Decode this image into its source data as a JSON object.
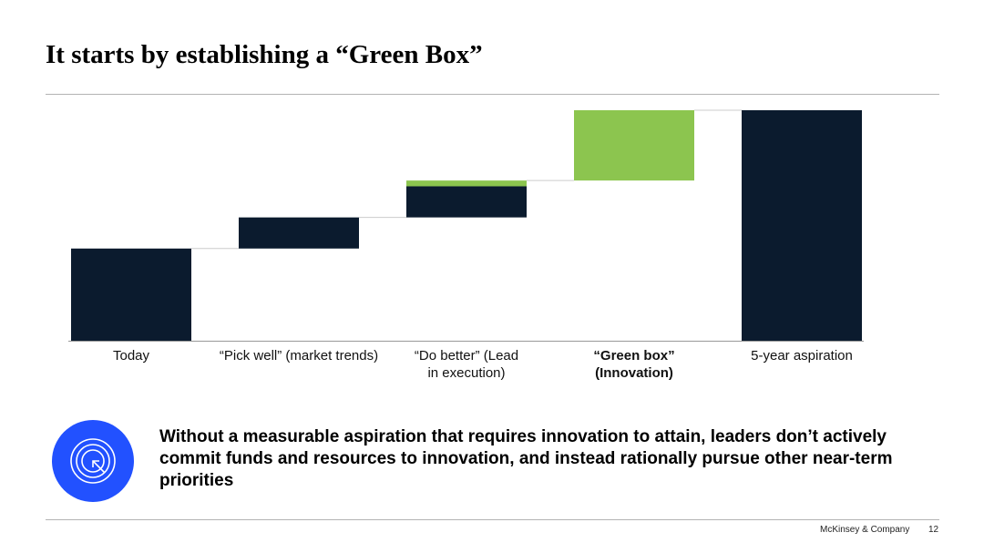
{
  "slide": {
    "title": "It starts by establishing a “Green Box”",
    "callout": "Without a measurable aspiration that requires innovation to attain, leaders don’t actively commit funds and resources to innovation, and instead rationally pursue other near-term priorities",
    "icon": "target-icon",
    "footer": {
      "brand": "McKinsey & Company",
      "page": "12"
    }
  },
  "colors": {
    "navy": "#0b1b2e",
    "green": "#8cc54f",
    "icon_bg": "#2251ff",
    "connector": "#cccccc",
    "rule": "#b3b3b3"
  },
  "chart_data": {
    "type": "bar",
    "subtype": "waterfall",
    "title": "",
    "xlabel": "",
    "ylabel": "",
    "ylim": [
      0,
      100
    ],
    "grid": false,
    "legend": "none",
    "categories": [
      {
        "label": "Today",
        "bold": false
      },
      {
        "label": "“Pick well” (market trends)",
        "bold": false
      },
      {
        "label": "“Do better” (Lead\nin execution)",
        "bold": false
      },
      {
        "label": "“Green box”\n(Innovation)",
        "bold": true
      },
      {
        "label": "5-year aspiration",
        "bold": false
      }
    ],
    "bars": [
      {
        "kind": "total",
        "base": 0,
        "value": 40,
        "color": "navy"
      },
      {
        "kind": "step",
        "base": 40,
        "value": 13.5,
        "color": "navy"
      },
      {
        "kind": "step",
        "base": 53.5,
        "value": 13.5,
        "color": "navy"
      },
      {
        "kind": "step",
        "base": 67,
        "value": 2.5,
        "color": "green"
      },
      {
        "kind": "step",
        "base": 69.5,
        "value": 30.5,
        "color": "green"
      },
      {
        "kind": "total",
        "base": 0,
        "value": 100,
        "color": "navy"
      }
    ],
    "bar_category": [
      0,
      1,
      2,
      2,
      3,
      4
    ]
  }
}
